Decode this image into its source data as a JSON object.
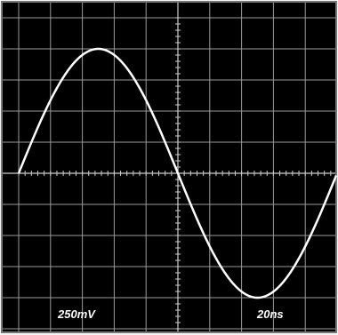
{
  "screen": {
    "volts_per_div": "250mV",
    "time_per_div": "20ns"
  }
}
